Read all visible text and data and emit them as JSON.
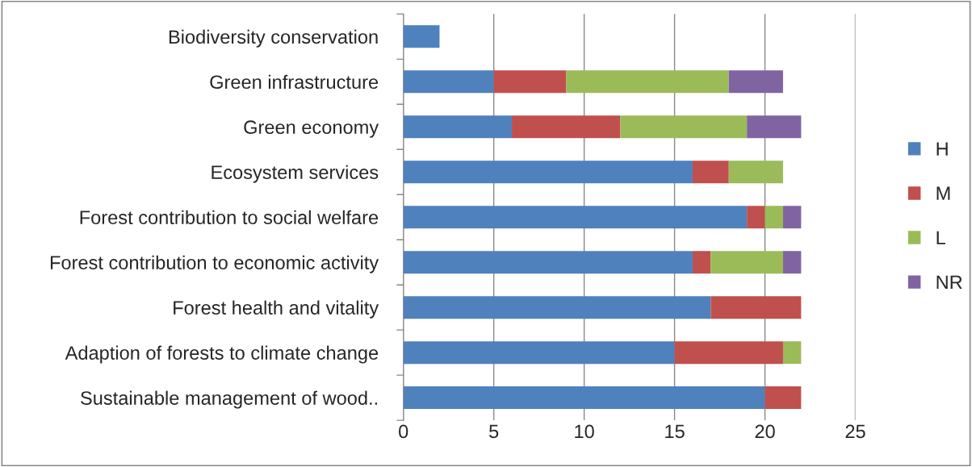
{
  "chart_data": {
    "type": "bar",
    "orientation": "horizontal",
    "stacked": true,
    "categories": [
      "Biodiversity conservation",
      "Green infrastructure",
      "Green economy",
      "Ecosystem services",
      "Forest contribution to social welfare",
      "Forest contribution to economic activity",
      "Forest health and vitality",
      "Adaption of forests to climate change",
      "Sustainable management of wood.."
    ],
    "series": [
      {
        "name": "H",
        "color": "#4f81bd",
        "values": [
          2,
          5,
          6,
          16,
          19,
          16,
          17,
          15,
          20
        ]
      },
      {
        "name": "M",
        "color": "#c0504d",
        "values": [
          0,
          4,
          6,
          2,
          1,
          1,
          5,
          6,
          2
        ]
      },
      {
        "name": "L",
        "color": "#9bbb59",
        "values": [
          0,
          9,
          7,
          3,
          1,
          4,
          0,
          1,
          0
        ]
      },
      {
        "name": "NR",
        "color": "#8064a2",
        "values": [
          0,
          3,
          3,
          0,
          1,
          1,
          0,
          0,
          0
        ]
      }
    ],
    "xlim": [
      0,
      25
    ],
    "xticks": [
      0,
      5,
      10,
      15,
      20,
      25
    ],
    "grid": "x",
    "legend": "right"
  }
}
